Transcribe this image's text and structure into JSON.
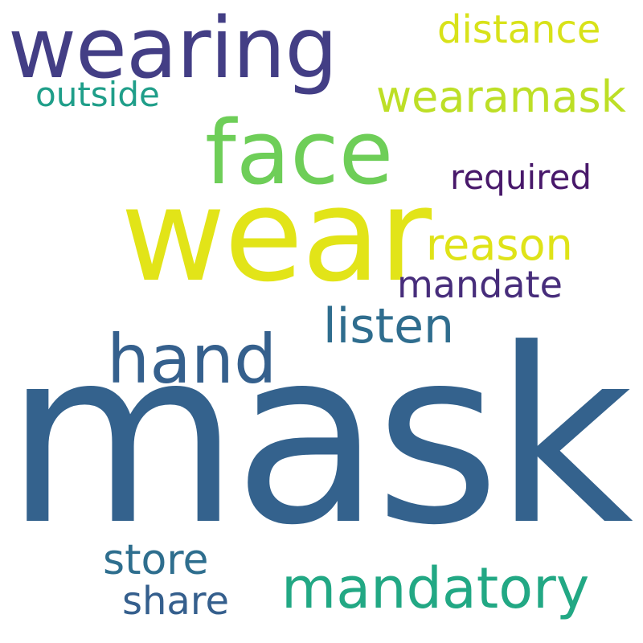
{
  "words": [
    {
      "id": "mask",
      "text": "mask",
      "color": "#34628D"
    },
    {
      "id": "wear",
      "text": "wear",
      "color": "#E2E418"
    },
    {
      "id": "face",
      "text": "face",
      "color": "#6ECE58"
    },
    {
      "id": "wearing",
      "text": "wearing",
      "color": "#433E85"
    },
    {
      "id": "hand",
      "text": "hand",
      "color": "#35608D"
    },
    {
      "id": "mandatory",
      "text": "mandatory",
      "color": "#22A884"
    },
    {
      "id": "listen",
      "text": "listen",
      "color": "#2F6D8E"
    },
    {
      "id": "wearamask",
      "text": "wearamask",
      "color": "#BDDF26"
    },
    {
      "id": "reason",
      "text": "reason",
      "color": "#DFE318"
    },
    {
      "id": "store",
      "text": "store",
      "color": "#2E6E8E"
    },
    {
      "id": "share",
      "text": "share",
      "color": "#355F8D"
    },
    {
      "id": "distance",
      "text": "distance",
      "color": "#D8E219"
    },
    {
      "id": "mandate",
      "text": "mandate",
      "color": "#472D7B"
    },
    {
      "id": "required",
      "text": "required",
      "color": "#48186A"
    },
    {
      "id": "outside",
      "text": "outside",
      "color": "#1F9E89"
    }
  ]
}
